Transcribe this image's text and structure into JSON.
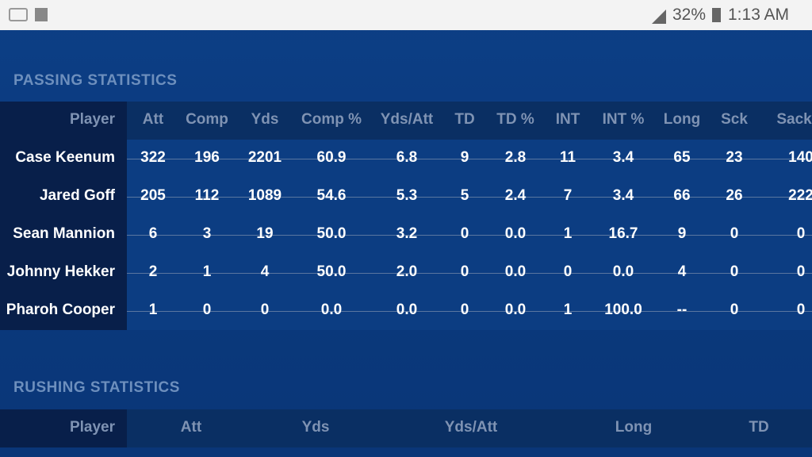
{
  "status_bar": {
    "battery": "32%",
    "time": "1:13 AM"
  },
  "passing": {
    "title": "PASSING STATISTICS",
    "columns": [
      "Player",
      "Att",
      "Comp",
      "Yds",
      "Comp %",
      "Yds/Att",
      "TD",
      "TD %",
      "INT",
      "INT %",
      "Long",
      "Sck",
      "Sack/L"
    ],
    "rows": [
      [
        "Case Keenum",
        "322",
        "196",
        "2201",
        "60.9",
        "6.8",
        "9",
        "2.8",
        "11",
        "3.4",
        "65",
        "23",
        "140"
      ],
      [
        "Jared Goff",
        "205",
        "112",
        "1089",
        "54.6",
        "5.3",
        "5",
        "2.4",
        "7",
        "3.4",
        "66",
        "26",
        "222"
      ],
      [
        "Sean Mannion",
        "6",
        "3",
        "19",
        "50.0",
        "3.2",
        "0",
        "0.0",
        "1",
        "16.7",
        "9",
        "0",
        "0"
      ],
      [
        "Johnny Hekker",
        "2",
        "1",
        "4",
        "50.0",
        "2.0",
        "0",
        "0.0",
        "0",
        "0.0",
        "4",
        "0",
        "0"
      ],
      [
        "Pharoh Cooper",
        "1",
        "0",
        "0",
        "0.0",
        "0.0",
        "0",
        "0.0",
        "1",
        "100.0",
        "--",
        "0",
        "0"
      ]
    ]
  },
  "rushing": {
    "title": "RUSHING STATISTICS",
    "columns": [
      "Player",
      "Att",
      "Yds",
      "Yds/Att",
      "Long",
      "TD"
    ]
  }
}
